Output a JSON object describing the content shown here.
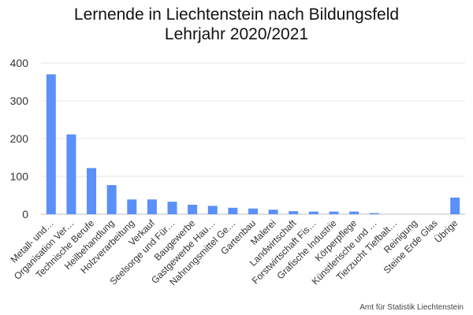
{
  "chart_data": {
    "type": "bar",
    "title": "Lernende in Liechtenstein nach Bildungsfeld",
    "subtitle": "Lehrjahr 2020/2021",
    "xlabel": "",
    "ylabel": "",
    "ylim": [
      0,
      400
    ],
    "yticks": [
      0,
      100,
      200,
      300,
      400
    ],
    "grid": true,
    "bar_color": "#5b8ff9",
    "categories": [
      "Metall- und…",
      "Organisation Ver…",
      "Technische Berufe",
      "Heilbehandlung",
      "Holzverarbeitung",
      "Verkauf",
      "Seelsorge und Für…",
      "Baugewerbe",
      "Gastgewerbe Hau…",
      "Nahrungsmittel Ge…",
      "Gartenbau",
      "Malerei",
      "Landwirtschaft",
      "Forstwirtschaft Fis…",
      "Grafische Industrie",
      "Körperpflege",
      "Künstlerische und …",
      "Tierzucht Tiefbalt…",
      "Reinigung",
      "Steine Erde Glas",
      "Übrige"
    ],
    "values": [
      370,
      211,
      122,
      77,
      39,
      39,
      33,
      25,
      22,
      17,
      15,
      12,
      8,
      7,
      7,
      7,
      3,
      0,
      0,
      0,
      44
    ]
  },
  "source": "Amt für Statistik Liechtenstein"
}
